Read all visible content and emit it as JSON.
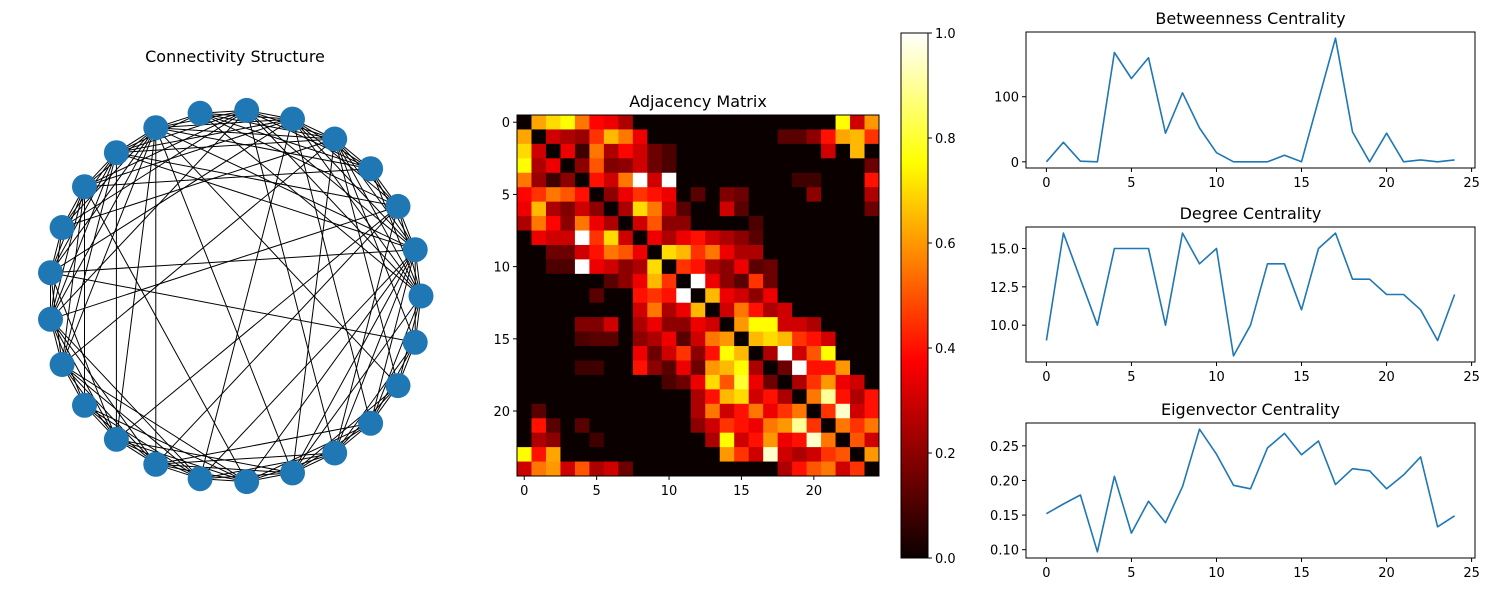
{
  "colors": {
    "line": "#1f77b4",
    "node": "#1f77b4",
    "edge": "#000000"
  },
  "chart_data": [
    {
      "type": "network",
      "title": "Connectivity Structure",
      "n_nodes": 25,
      "edges": [
        [
          0,
          1
        ],
        [
          0,
          2
        ],
        [
          0,
          3
        ],
        [
          0,
          4
        ],
        [
          0,
          5
        ],
        [
          0,
          6
        ],
        [
          0,
          7
        ],
        [
          0,
          20
        ],
        [
          0,
          22
        ],
        [
          0,
          23
        ],
        [
          0,
          24
        ],
        [
          1,
          2
        ],
        [
          1,
          3
        ],
        [
          1,
          4
        ],
        [
          1,
          5
        ],
        [
          1,
          6
        ],
        [
          1,
          8
        ],
        [
          1,
          9
        ],
        [
          1,
          12
        ],
        [
          1,
          18
        ],
        [
          1,
          19
        ],
        [
          1,
          20
        ],
        [
          1,
          21
        ],
        [
          1,
          22
        ],
        [
          1,
          24
        ],
        [
          2,
          3
        ],
        [
          2,
          4
        ],
        [
          2,
          5
        ],
        [
          2,
          7
        ],
        [
          2,
          9
        ],
        [
          2,
          13
        ],
        [
          2,
          16
        ],
        [
          2,
          17
        ],
        [
          2,
          21
        ],
        [
          3,
          4
        ],
        [
          3,
          5
        ],
        [
          3,
          6
        ],
        [
          3,
          7
        ],
        [
          3,
          8
        ],
        [
          3,
          10
        ],
        [
          4,
          5
        ],
        [
          4,
          6
        ],
        [
          4,
          7
        ],
        [
          4,
          8
        ],
        [
          4,
          9
        ],
        [
          4,
          11
        ],
        [
          4,
          14
        ],
        [
          4,
          20
        ],
        [
          4,
          23
        ],
        [
          4,
          24
        ],
        [
          5,
          6
        ],
        [
          5,
          7
        ],
        [
          5,
          8
        ],
        [
          5,
          9
        ],
        [
          5,
          10
        ],
        [
          5,
          12
        ],
        [
          5,
          18
        ],
        [
          5,
          22
        ],
        [
          6,
          7
        ],
        [
          6,
          8
        ],
        [
          6,
          9
        ],
        [
          6,
          10
        ],
        [
          6,
          11
        ],
        [
          6,
          13
        ],
        [
          6,
          21
        ],
        [
          7,
          8
        ],
        [
          7,
          9
        ],
        [
          8,
          9
        ],
        [
          8,
          10
        ],
        [
          8,
          11
        ],
        [
          8,
          12
        ],
        [
          8,
          13
        ],
        [
          8,
          14
        ],
        [
          8,
          16
        ],
        [
          8,
          17
        ],
        [
          8,
          20
        ],
        [
          8,
          23
        ],
        [
          9,
          10
        ],
        [
          9,
          11
        ],
        [
          9,
          12
        ],
        [
          9,
          13
        ],
        [
          9,
          14
        ],
        [
          9,
          16
        ],
        [
          10,
          11
        ],
        [
          10,
          12
        ],
        [
          10,
          13
        ],
        [
          10,
          14
        ],
        [
          10,
          15
        ],
        [
          10,
          19
        ],
        [
          11,
          12
        ],
        [
          11,
          13
        ],
        [
          12,
          13
        ],
        [
          12,
          14
        ],
        [
          12,
          16
        ],
        [
          12,
          24
        ],
        [
          13,
          14
        ],
        [
          13,
          15
        ],
        [
          13,
          16
        ],
        [
          13,
          17
        ],
        [
          13,
          18
        ],
        [
          14,
          15
        ],
        [
          14,
          16
        ],
        [
          14,
          17
        ],
        [
          14,
          18
        ],
        [
          14,
          19
        ],
        [
          15,
          16
        ],
        [
          15,
          17
        ],
        [
          15,
          18
        ],
        [
          15,
          19
        ],
        [
          16,
          17
        ],
        [
          16,
          18
        ],
        [
          16,
          19
        ],
        [
          16,
          20
        ],
        [
          17,
          18
        ],
        [
          17,
          19
        ],
        [
          17,
          20
        ],
        [
          17,
          21
        ],
        [
          17,
          22
        ],
        [
          18,
          19
        ],
        [
          18,
          20
        ],
        [
          18,
          21
        ],
        [
          19,
          20
        ],
        [
          19,
          21
        ],
        [
          19,
          22
        ],
        [
          20,
          21
        ],
        [
          20,
          22
        ],
        [
          20,
          23
        ],
        [
          21,
          22
        ],
        [
          21,
          23
        ],
        [
          21,
          24
        ],
        [
          22,
          23
        ],
        [
          22,
          24
        ],
        [
          23,
          24
        ]
      ]
    },
    {
      "type": "heatmap",
      "title": "Adjacency Matrix",
      "colormap": "hot",
      "colorbar_range": [
        0,
        1
      ],
      "colorbar_ticks": [
        "0.0",
        "0.2",
        "0.4",
        "0.6",
        "0.8",
        "1.0"
      ],
      "x_ticks": [
        "0",
        "5",
        "10",
        "15",
        "20"
      ],
      "y_ticks": [
        "0",
        "5",
        "10",
        "15",
        "20"
      ],
      "matrix": [
        [
          0.0,
          0.62,
          0.7,
          0.75,
          0.55,
          0.38,
          0.35,
          0.25,
          0,
          0,
          0,
          0,
          0,
          0,
          0,
          0,
          0,
          0,
          0,
          0,
          0,
          0,
          0.75,
          0.3,
          0.6
        ],
        [
          0.62,
          0.0,
          0.3,
          0.25,
          0.22,
          0.45,
          0.65,
          0.55,
          0.35,
          0,
          0,
          0,
          0,
          0,
          0,
          0,
          0,
          0,
          0.12,
          0.12,
          0.2,
          0.4,
          0.62,
          0.65,
          0.45
        ],
        [
          0.7,
          0.3,
          0.0,
          0.35,
          0.08,
          0.55,
          0.25,
          0.38,
          0.3,
          0.15,
          0.1,
          0,
          0,
          0,
          0,
          0,
          0,
          0,
          0,
          0,
          0,
          0.3,
          0,
          0.65,
          0
        ],
        [
          0.75,
          0.25,
          0.35,
          0.0,
          0.2,
          0.5,
          0.18,
          0.2,
          0.3,
          0.15,
          0.1,
          0,
          0,
          0,
          0,
          0,
          0,
          0,
          0,
          0,
          0,
          0,
          0,
          0,
          0.15
        ],
        [
          0.55,
          0.22,
          0.08,
          0.2,
          0.0,
          0.4,
          0.3,
          0.55,
          1.0,
          0.3,
          1.0,
          0,
          0,
          0,
          0,
          0,
          0,
          0,
          0,
          0.08,
          0.08,
          0,
          0,
          0,
          0.4
        ],
        [
          0.38,
          0.45,
          0.55,
          0.5,
          0.4,
          0.0,
          0.2,
          0.35,
          0.45,
          0.4,
          0.35,
          0,
          0.12,
          0,
          0.18,
          0.15,
          0,
          0,
          0,
          0,
          0.2,
          0,
          0,
          0,
          0.25
        ],
        [
          0.35,
          0.65,
          0.25,
          0.18,
          0.3,
          0.2,
          0.0,
          0.25,
          0.7,
          0.55,
          0.3,
          0.12,
          0,
          0,
          0.3,
          0.12,
          0,
          0,
          0,
          0,
          0,
          0,
          0,
          0,
          0.15
        ],
        [
          0.25,
          0.55,
          0.38,
          0.2,
          0.55,
          0.35,
          0.25,
          0.0,
          0.3,
          0.5,
          0.2,
          0.2,
          0,
          0,
          0,
          0,
          0.1,
          0,
          0,
          0,
          0,
          0,
          0,
          0,
          0
        ],
        [
          0,
          0.35,
          0.3,
          0.3,
          1.0,
          0.45,
          0.7,
          0.3,
          0.0,
          0.35,
          0.25,
          0.35,
          0.4,
          0.3,
          0.25,
          0.2,
          0.12,
          0,
          0,
          0,
          0,
          0,
          0,
          0,
          0
        ],
        [
          0,
          0,
          0.15,
          0.15,
          0.3,
          0.4,
          0.55,
          0.5,
          0.35,
          0.0,
          0.7,
          0.65,
          0.45,
          0.55,
          0.35,
          0.25,
          0.25,
          0,
          0,
          0,
          0,
          0,
          0,
          0,
          0
        ],
        [
          0,
          0,
          0.1,
          0.1,
          1.0,
          0.35,
          0.3,
          0.2,
          0.25,
          0.7,
          0.0,
          0.45,
          0.4,
          0.25,
          0.2,
          0.35,
          0.12,
          0.15,
          0,
          0,
          0,
          0,
          0,
          0,
          0
        ],
        [
          0,
          0,
          0,
          0,
          0,
          0,
          0.12,
          0.2,
          0.35,
          0.65,
          0.45,
          0.0,
          1.0,
          0.35,
          0.2,
          0.12,
          0.45,
          0.15,
          0,
          0,
          0,
          0,
          0,
          0,
          0
        ],
        [
          0,
          0,
          0,
          0,
          0,
          0.12,
          0,
          0,
          0.4,
          0.45,
          0.4,
          1.0,
          0.0,
          0.65,
          0.35,
          0.3,
          0.2,
          0.35,
          0,
          0,
          0,
          0,
          0,
          0,
          0
        ],
        [
          0,
          0,
          0,
          0,
          0,
          0,
          0,
          0,
          0.3,
          0.55,
          0.25,
          0.35,
          0.65,
          0.0,
          0.3,
          0.55,
          0.4,
          0.25,
          0.3,
          0,
          0,
          0,
          0,
          0,
          0
        ],
        [
          0,
          0,
          0,
          0,
          0.18,
          0.18,
          0.3,
          0,
          0.25,
          0.35,
          0.2,
          0.2,
          0.35,
          0.3,
          0.0,
          0.6,
          0.75,
          0.75,
          0.3,
          0.3,
          0.25,
          0,
          0,
          0,
          0
        ],
        [
          0,
          0,
          0,
          0,
          0.1,
          0.12,
          0.12,
          0,
          0.2,
          0.25,
          0.35,
          0.12,
          0.3,
          0.55,
          0.6,
          0.0,
          0.65,
          0.7,
          0.65,
          0.45,
          0.4,
          0.3,
          0,
          0,
          0
        ],
        [
          0,
          0,
          0,
          0,
          0,
          0,
          0,
          0,
          0.35,
          0.15,
          0.3,
          0.45,
          0.2,
          0.4,
          0.75,
          0.65,
          0.0,
          0.25,
          1.0,
          0.3,
          0.5,
          0.75,
          0,
          0,
          0
        ],
        [
          0,
          0,
          0,
          0,
          0.08,
          0.08,
          0,
          0,
          0.4,
          0.2,
          0.12,
          0.35,
          0.15,
          0.6,
          0.65,
          0.75,
          0.25,
          0.0,
          0.15,
          1.0,
          0.4,
          0.4,
          0.6,
          0,
          0
        ],
        [
          0,
          0,
          0,
          0,
          0,
          0,
          0,
          0,
          0,
          0,
          0.1,
          0.15,
          0.35,
          0.7,
          0.5,
          0.8,
          0.35,
          0.15,
          0.0,
          0.25,
          0.45,
          0.6,
          0.35,
          0.3,
          0
        ],
        [
          0,
          0,
          0,
          0,
          0,
          0,
          0,
          0,
          0,
          0,
          0,
          0,
          0.25,
          0.4,
          0.65,
          0.7,
          0.3,
          0.4,
          0.25,
          0.0,
          0.55,
          0.9,
          0.4,
          0.25,
          0.4
        ],
        [
          0,
          0.12,
          0,
          0,
          0,
          0,
          0,
          0,
          0,
          0,
          0,
          0,
          0.25,
          0.55,
          0.3,
          0.4,
          0.55,
          0.35,
          0.45,
          0.55,
          0.0,
          0.45,
          0.95,
          0.3,
          0.4
        ],
        [
          0,
          0.4,
          0.12,
          0,
          0.12,
          0,
          0,
          0,
          0,
          0,
          0,
          0,
          0.2,
          0.3,
          0.45,
          0.4,
          0.35,
          0.55,
          0.6,
          0.9,
          0.45,
          0.0,
          0.55,
          0.45,
          0.55
        ],
        [
          0,
          0.25,
          0.2,
          0,
          0,
          0.08,
          0,
          0,
          0,
          0,
          0,
          0,
          0,
          0.25,
          0.75,
          0.3,
          0.4,
          0.6,
          0.35,
          0.4,
          0.95,
          0.55,
          0.0,
          0.5,
          0.3
        ],
        [
          0.75,
          0.4,
          0.62,
          0,
          0,
          0,
          0,
          0,
          0,
          0,
          0,
          0,
          0,
          0,
          0.6,
          0.45,
          0.3,
          0.95,
          0.3,
          0.25,
          0.3,
          0.45,
          0.5,
          0.0,
          0.6
        ],
        [
          0.3,
          0.55,
          0.6,
          0.3,
          0.5,
          0.25,
          0.3,
          0.15,
          0,
          0,
          0,
          0,
          0,
          0,
          0,
          0,
          0,
          0,
          0.25,
          0.4,
          0.5,
          0.55,
          0.3,
          0.45,
          0.0
        ]
      ]
    },
    {
      "type": "line",
      "title": "Betweenness Centrality",
      "x": [
        0,
        1,
        2,
        3,
        4,
        5,
        6,
        7,
        8,
        9,
        10,
        11,
        12,
        13,
        14,
        15,
        16,
        17,
        18,
        19,
        20,
        21,
        22,
        23,
        24
      ],
      "values": [
        0,
        30,
        1,
        0,
        168,
        128,
        160,
        44,
        106,
        52,
        14,
        0,
        0,
        0,
        10,
        0,
        95,
        190,
        46,
        0,
        44,
        0,
        3,
        0,
        3
      ],
      "xlim": [
        -1.2,
        25.2
      ],
      "ylim": [
        -9.5,
        199.5
      ],
      "x_ticks": [
        0,
        5,
        10,
        15,
        20,
        25
      ],
      "y_ticks": [
        0,
        100
      ],
      "y_tick_labels": [
        "0",
        "100"
      ]
    },
    {
      "type": "line",
      "title": "Degree Centrality",
      "x": [
        0,
        1,
        2,
        3,
        4,
        5,
        6,
        7,
        8,
        9,
        10,
        11,
        12,
        13,
        14,
        15,
        16,
        17,
        18,
        19,
        20,
        21,
        22,
        23,
        24
      ],
      "values": [
        9,
        16,
        13,
        10,
        15,
        15,
        15,
        10,
        16,
        14,
        15,
        8,
        10,
        14,
        14,
        11,
        15,
        16,
        13,
        13,
        12,
        12,
        11,
        9,
        12
      ],
      "xlim": [
        -1.2,
        25.2
      ],
      "ylim": [
        7.6,
        16.4
      ],
      "x_ticks": [
        0,
        5,
        10,
        15,
        20,
        25
      ],
      "y_ticks": [
        10,
        12.5,
        15
      ],
      "y_tick_labels": [
        "10.0",
        "12.5",
        "15.0"
      ]
    },
    {
      "type": "line",
      "title": "Eigenvector Centrality",
      "x": [
        0,
        1,
        2,
        3,
        4,
        5,
        6,
        7,
        8,
        9,
        10,
        11,
        12,
        13,
        14,
        15,
        16,
        17,
        18,
        19,
        20,
        21,
        22,
        23,
        24
      ],
      "values": [
        0.152,
        0.166,
        0.179,
        0.097,
        0.206,
        0.124,
        0.17,
        0.139,
        0.191,
        0.274,
        0.238,
        0.193,
        0.188,
        0.247,
        0.268,
        0.237,
        0.257,
        0.194,
        0.217,
        0.214,
        0.188,
        0.208,
        0.234,
        0.133,
        0.149
      ],
      "xlim": [
        -1.2,
        25.2
      ],
      "ylim": [
        0.088,
        0.283
      ],
      "x_ticks": [
        0,
        5,
        10,
        15,
        20,
        25
      ],
      "y_ticks": [
        0.1,
        0.15,
        0.2,
        0.25
      ],
      "y_tick_labels": [
        "0.10",
        "0.15",
        "0.20",
        "0.25"
      ]
    }
  ]
}
